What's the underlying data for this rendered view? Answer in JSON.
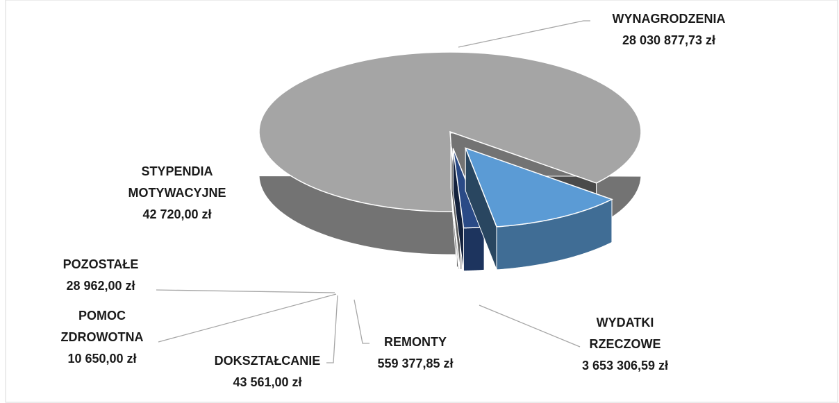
{
  "chart_data": {
    "type": "pie",
    "categories": [
      "WYNAGRODZENIA",
      "WYDATKI RZECZOWE",
      "REMONTY",
      "DOKSZTAŁCANIE",
      "POMOC ZDROWOTNA",
      "POZOSTAŁE",
      "STYPENDIA MOTYWACYJNE"
    ],
    "values": [
      28030877.73,
      3653306.59,
      559377.85,
      43561.0,
      10650.0,
      28962.0,
      42720.0
    ],
    "value_labels": [
      "28 030 877,73 zł",
      "3 653 306,59 zł",
      "559 377,85 zł",
      "43 561,00 zł",
      "10 650,00 zł",
      "28 962,00 zł",
      "42 720,00 zł"
    ],
    "colors": [
      "#a5a5a5",
      "#5b9bd5",
      "#2a4a86",
      "#c9c9c9",
      "#e0e0e0",
      "#d9d9d9",
      "#7f7f7f"
    ]
  }
}
